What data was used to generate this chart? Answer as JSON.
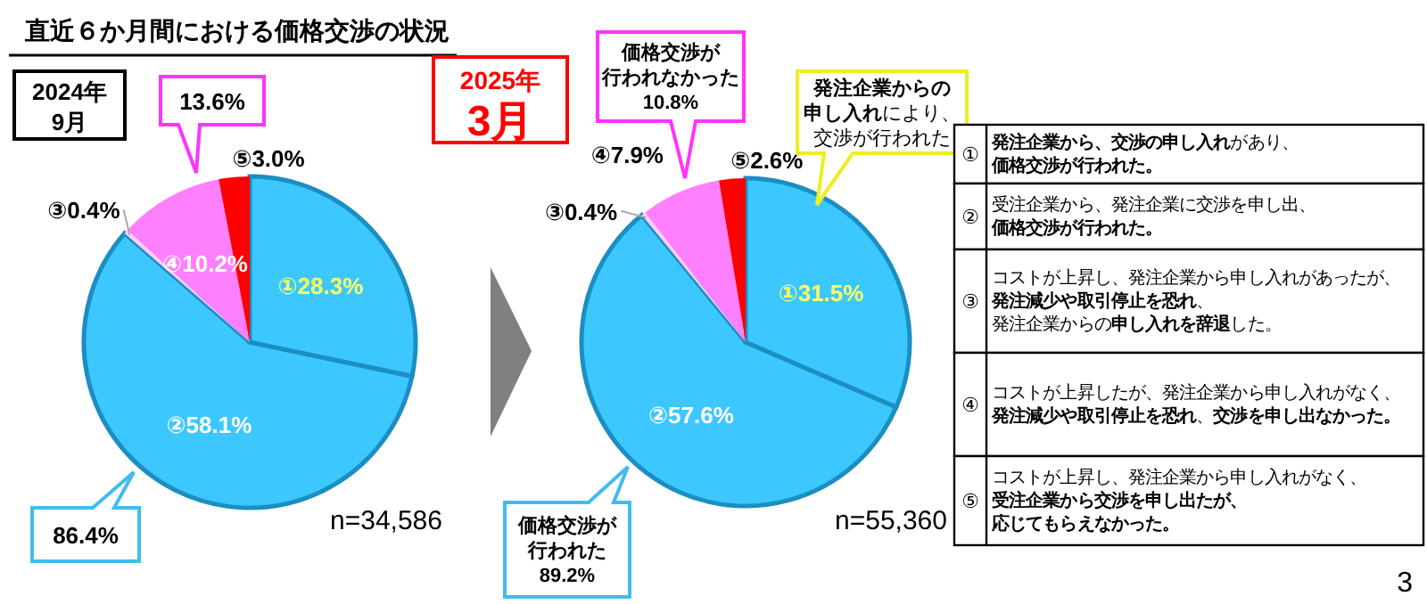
{
  "chart_data": [
    {
      "type": "pie",
      "title": "直近６か月間における価格交渉の状況",
      "subtitle": "2024年\n9月",
      "categories": [
        "①",
        "②",
        "③",
        "④",
        "⑤"
      ],
      "values": [
        28.3,
        58.1,
        0.4,
        10.2,
        3.0
      ],
      "value_labels": [
        "28.3%",
        "58.1%",
        "0.4%",
        "10.2%",
        "3.0%"
      ],
      "colors": [
        "#3cc8ff",
        "#3cc8ff",
        "#ffccff",
        "#ff80ff",
        "#ff0000"
      ],
      "annotations": [
        "13.6%",
        "86.4%",
        "n=34,586"
      ]
    },
    {
      "type": "pie",
      "subtitle": "2025年\n3月",
      "categories": [
        "①",
        "②",
        "③",
        "④",
        "⑤"
      ],
      "values": [
        31.5,
        57.6,
        0.4,
        7.9,
        2.6
      ],
      "value_labels": [
        "31.5%",
        "57.6%",
        "0.4%",
        "7.9%",
        "2.6%"
      ],
      "colors": [
        "#3cc8ff",
        "#3cc8ff",
        "#ffccff",
        "#ff80ff",
        "#ff0000"
      ],
      "annotations": [
        "価格交渉が行われなかった10.8%",
        "**発注企業からの申し入れ**により、交渉が行われた",
        "価格交渉が行われた89.2%",
        "n=55,360"
      ]
    },
    {
      "type": "other",
      "annotations": [
        "①",
        "**発注企業から、交渉の申し入れ**があり、**価格交渉が行われた。**",
        "②",
        "受注企業から、発注企業に交渉を申し出、**価格交渉が行われた。**",
        "③",
        "コストが上昇し、発注企業から申し入れがあったが、**発注減少や取引停止を恐れ**、発注企業からの**申し入れを辞退**した。",
        "④",
        "コストが上昇したが、発注企業から申し入れがなく、**発注減少や取引停止を恐れ**、**交渉を申し出なかった。**",
        "⑤",
        "コストが上昇し、発注企業から申し入れがなく、**受注企業から交渉を申し出たが、応じてもらえなかった。**",
        "3"
      ]
    }
  ]
}
